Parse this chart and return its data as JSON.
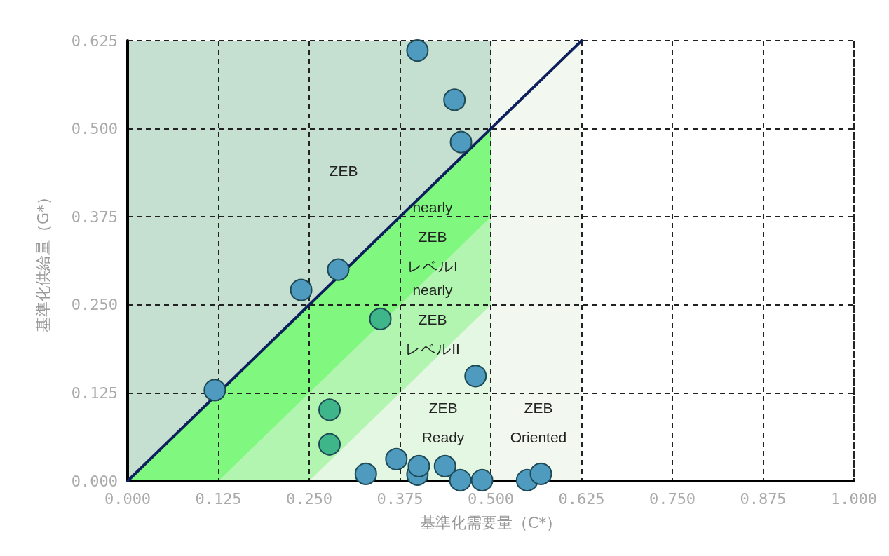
{
  "chart_data": {
    "type": "scatter",
    "xlabel": "基準化需要量（C*）",
    "ylabel": "基準化供給量（G*）",
    "xlim": [
      0,
      1
    ],
    "ylim": [
      0,
      0.625
    ],
    "xticks": [
      {
        "value": 0,
        "label": "0.000"
      },
      {
        "value": 0.125,
        "label": "0.125"
      },
      {
        "value": 0.25,
        "label": "0.250"
      },
      {
        "value": 0.375,
        "label": "0.375"
      },
      {
        "value": 0.5,
        "label": "0.500"
      },
      {
        "value": 0.625,
        "label": "0.625"
      },
      {
        "value": 0.75,
        "label": "0.750"
      },
      {
        "value": 0.875,
        "label": "0.875"
      },
      {
        "value": 1,
        "label": "1.000"
      }
    ],
    "yticks": [
      {
        "value": 0,
        "label": "0.000"
      },
      {
        "value": 0.125,
        "label": "0.125"
      },
      {
        "value": 0.25,
        "label": "0.250"
      },
      {
        "value": 0.375,
        "label": "0.375"
      },
      {
        "value": 0.5,
        "label": "0.500"
      },
      {
        "value": 0.625,
        "label": "0.625"
      }
    ],
    "grid": true,
    "bands": [
      {
        "axis": "x",
        "from": 0.5,
        "to": 0.625,
        "color": "#f2f7ef"
      }
    ],
    "series": [
      {
        "type": "area",
        "color": "#c5dfd0",
        "marker": "none",
        "x": [
          0,
          0.5
        ],
        "values": [
          0.625,
          0.625
        ]
      },
      {
        "type": "area",
        "color": "#80f880",
        "marker": "none",
        "x": [
          0,
          0.5
        ],
        "values": [
          0,
          0.5
        ]
      },
      {
        "type": "area",
        "color": "#b2f5b0",
        "marker": "none",
        "x": [
          0.125,
          0.5
        ],
        "values": [
          0,
          0.375
        ]
      },
      {
        "type": "area",
        "color": "#e4f7e2",
        "marker": "none",
        "x": [
          0.25,
          0.5
        ],
        "values": [
          0,
          0.25
        ]
      },
      {
        "type": "line",
        "color": "#0d1f5c",
        "marker": "none",
        "line_style": "solid",
        "x": [
          0,
          0.625
        ],
        "values": [
          0,
          0.625
        ]
      },
      {
        "color": "#4f9bc0",
        "marker": "circle",
        "x": [
          0.399,
          0.45,
          0.459,
          0.29,
          0.239,
          0.479,
          0.12,
          0.328,
          0.37,
          0.399,
          0.401,
          0.437,
          0.458,
          0.488,
          0.55,
          0.569
        ],
        "values": [
          0.611,
          0.541,
          0.481,
          0.3,
          0.271,
          0.149,
          0.129,
          0.01,
          0.031,
          0.009,
          0.021,
          0.021,
          0.001,
          0.001,
          0.001,
          0.01
        ]
      },
      {
        "color": "#3fb68a",
        "marker": "circle",
        "x": [
          0.348,
          0.278,
          0.278
        ],
        "values": [
          0.23,
          0.101,
          0.052
        ]
      }
    ],
    "annotations": [
      "ZEB",
      "nearly\nZEB\nレベルI",
      "nearly\nZEB\nレベルII",
      "ZEB\nReady",
      "ZEB\nOriented"
    ]
  }
}
